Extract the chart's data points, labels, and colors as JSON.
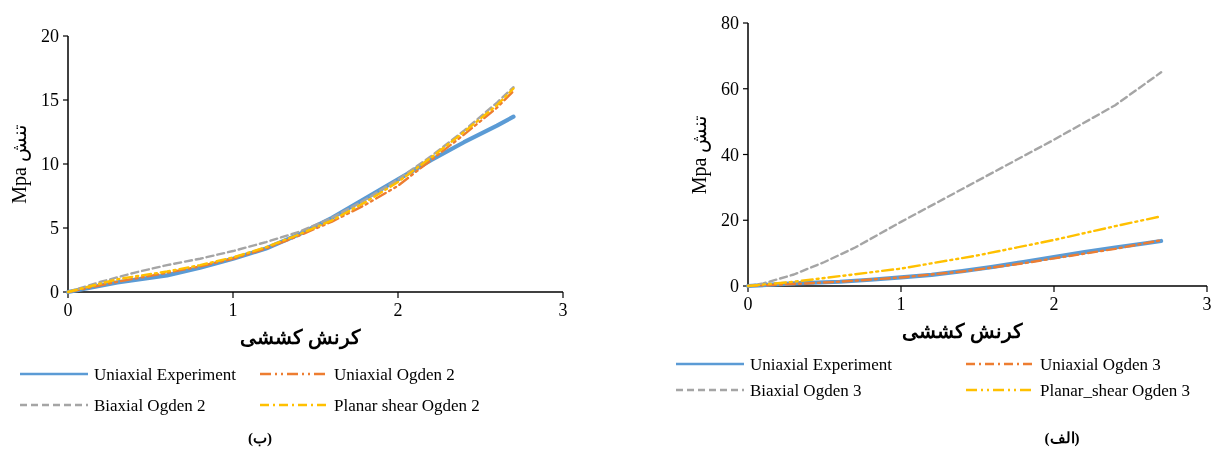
{
  "chart_data": [
    {
      "type": "line",
      "xlabel": "کرنش کششی",
      "ylabel": "Mpa تنش",
      "annotations": [
        "(ب)"
      ],
      "xlim": [
        0,
        3
      ],
      "xticks": [
        0,
        1,
        2,
        3
      ],
      "ylim": [
        0,
        20
      ],
      "yticks": [
        0,
        5,
        10,
        15,
        20
      ],
      "grid": false,
      "legend": "bottom",
      "series": [
        {
          "name": "Uniaxial Experiment",
          "color": "#5b9bd5",
          "line_style": "solid",
          "x": [
            0,
            0.3,
            0.6,
            0.8,
            1.0,
            1.2,
            1.4,
            1.6,
            1.8,
            2.0,
            2.2,
            2.4,
            2.6,
            2.7
          ],
          "values": [
            0,
            0.75,
            1.3,
            1.9,
            2.6,
            3.4,
            4.5,
            5.8,
            7.3,
            8.8,
            10.3,
            11.7,
            13.0,
            13.7
          ]
        },
        {
          "name": "Uniaxial Ogden 2",
          "color": "#ed7d31",
          "line_style": "dashdotdot",
          "x": [
            0,
            0.3,
            0.6,
            0.8,
            1.0,
            1.2,
            1.4,
            1.6,
            1.8,
            2.0,
            2.2,
            2.4,
            2.6,
            2.7
          ],
          "values": [
            0,
            0.8,
            1.5,
            2.0,
            2.6,
            3.4,
            4.4,
            5.5,
            6.8,
            8.3,
            10.3,
            12.3,
            14.4,
            15.7
          ]
        },
        {
          "name": "Biaxial Ogden 2",
          "color": "#a5a5a5",
          "line_style": "dashed",
          "x": [
            0,
            0.2,
            0.4,
            0.6,
            0.8,
            1.0,
            1.2,
            1.4,
            1.6,
            1.8,
            2.0,
            2.2,
            2.4,
            2.6,
            2.7
          ],
          "values": [
            0,
            0.8,
            1.5,
            2.1,
            2.6,
            3.2,
            3.9,
            4.7,
            5.8,
            7.2,
            8.8,
            10.6,
            12.6,
            14.8,
            16.0
          ]
        },
        {
          "name": "Planar shear Ogden 2",
          "color": "#ffc000",
          "line_style": "dashdot",
          "x": [
            0,
            0.3,
            0.6,
            0.8,
            1.0,
            1.2,
            1.4,
            1.6,
            1.8,
            2.0,
            2.2,
            2.4,
            2.6,
            2.7
          ],
          "values": [
            0,
            1.0,
            1.6,
            2.1,
            2.7,
            3.5,
            4.5,
            5.6,
            7.0,
            8.6,
            10.5,
            12.5,
            14.6,
            15.9
          ]
        }
      ]
    },
    {
      "type": "line",
      "xlabel": "کرنش کششی",
      "ylabel": "Mpa تنش",
      "annotations": [
        "(الف)"
      ],
      "xlim": [
        0,
        3
      ],
      "xticks": [
        0,
        1,
        2,
        3
      ],
      "ylim": [
        0,
        80
      ],
      "yticks": [
        0,
        20,
        40,
        60,
        80
      ],
      "grid": false,
      "legend": "bottom",
      "series": [
        {
          "name": "Uniaxial Experiment",
          "color": "#5b9bd5",
          "line_style": "solid",
          "x": [
            0,
            0.3,
            0.6,
            0.8,
            1.0,
            1.2,
            1.4,
            1.6,
            1.8,
            2.0,
            2.2,
            2.4,
            2.6,
            2.7
          ],
          "values": [
            0,
            0.8,
            1.3,
            1.9,
            2.6,
            3.4,
            4.5,
            5.8,
            7.3,
            8.8,
            10.3,
            11.7,
            13.0,
            13.7
          ]
        },
        {
          "name": "Uniaxial Ogden 3",
          "color": "#ed7d31",
          "line_style": "dashdot",
          "x": [
            0,
            0.3,
            0.6,
            1.0,
            1.4,
            1.8,
            2.0,
            2.4,
            2.7
          ],
          "values": [
            0,
            0.6,
            1.3,
            2.6,
            4.4,
            6.9,
            8.4,
            11.3,
            13.9
          ]
        },
        {
          "name": "Biaxial Ogden 3",
          "color": "#a5a5a5",
          "line_style": "dashed",
          "x": [
            0,
            0.1,
            0.3,
            0.5,
            0.7,
            1.0,
            1.3,
            1.6,
            2.0,
            2.4,
            2.7
          ],
          "values": [
            0,
            0.8,
            3.5,
            7.3,
            11.7,
            19.5,
            27,
            34.5,
            44.5,
            55,
            65
          ]
        },
        {
          "name": "Planar_shear Ogden 3",
          "color": "#ffc000",
          "line_style": "dashdotdot",
          "x": [
            0,
            0.3,
            0.6,
            1.0,
            1.5,
            2.0,
            2.4,
            2.7
          ],
          "values": [
            0,
            1.3,
            3.0,
            5.3,
            9.3,
            14.0,
            18.2,
            21.2
          ]
        }
      ]
    }
  ]
}
